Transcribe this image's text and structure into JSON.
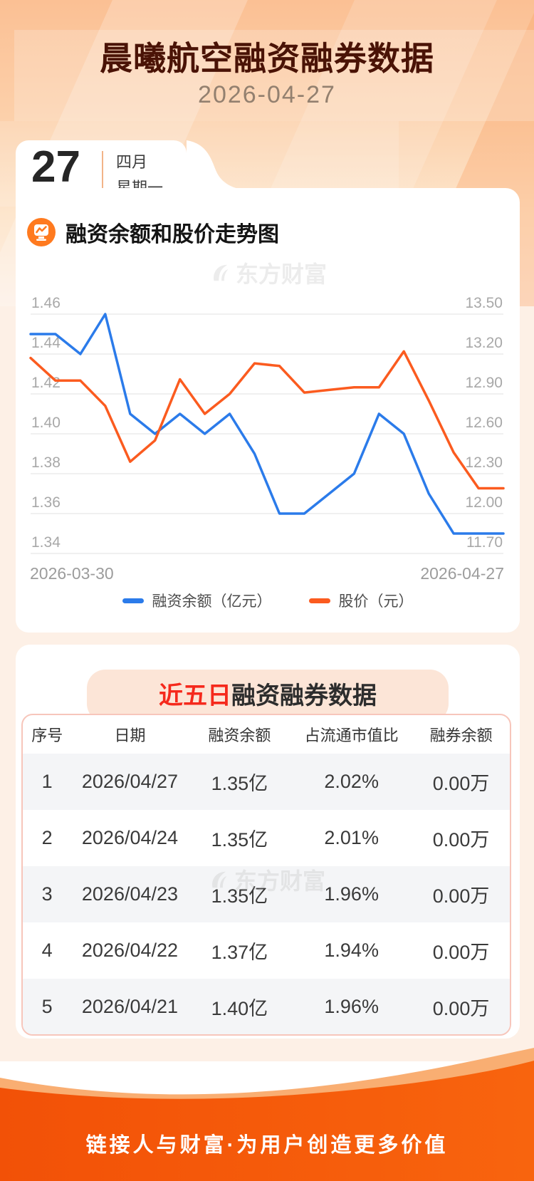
{
  "header": {
    "title": "晨曦航空融资融券数据",
    "date": "2026-04-27"
  },
  "date_card": {
    "day": "27",
    "month": "四月",
    "weekday": "星期一"
  },
  "chart_section": {
    "title": "融资余额和股价走势图"
  },
  "watermark": {
    "text": "东方财富"
  },
  "chart_data": {
    "type": "line",
    "title": "融资余额和股价走势图",
    "x_start_label": "2026-03-30",
    "x_end_label": "2026-04-27",
    "grid": true,
    "legend_position": "bottom",
    "left_axis": {
      "min": 1.34,
      "max": 1.46,
      "ticks": [
        "1.46",
        "1.44",
        "1.42",
        "1.40",
        "1.38",
        "1.36",
        "1.34"
      ]
    },
    "right_axis": {
      "min": 11.7,
      "max": 13.5,
      "ticks": [
        "13.50",
        "13.20",
        "12.90",
        "12.60",
        "12.30",
        "12.00",
        "11.70"
      ]
    },
    "series": [
      {
        "name": "融资余额（亿元）",
        "axis": "left",
        "color": "#2b7bea",
        "values": [
          1.45,
          1.45,
          1.44,
          1.46,
          1.41,
          1.4,
          1.41,
          1.4,
          1.41,
          1.39,
          1.36,
          1.36,
          1.37,
          1.38,
          1.41,
          1.4,
          1.37,
          1.35,
          1.35,
          1.35
        ]
      },
      {
        "name": "股价（元）",
        "axis": "right",
        "color": "#fb5b1f",
        "values": [
          13.17,
          13.0,
          13.0,
          12.81,
          12.39,
          12.55,
          13.01,
          12.75,
          12.9,
          13.13,
          13.11,
          12.91,
          12.93,
          12.95,
          12.95,
          13.22,
          12.85,
          12.46,
          12.19,
          12.19
        ]
      }
    ]
  },
  "table_section": {
    "title_highlight": "近五日",
    "title_rest": "融资融券数据",
    "columns": [
      "序号",
      "日期",
      "融资余额",
      "占流通市值比",
      "融券余额"
    ],
    "rows": [
      [
        "1",
        "2026/04/27",
        "1.35亿",
        "2.02%",
        "0.00万"
      ],
      [
        "2",
        "2026/04/24",
        "1.35亿",
        "2.01%",
        "0.00万"
      ],
      [
        "3",
        "2026/04/23",
        "1.35亿",
        "1.96%",
        "0.00万"
      ],
      [
        "4",
        "2026/04/22",
        "1.37亿",
        "1.94%",
        "0.00万"
      ],
      [
        "5",
        "2026/04/21",
        "1.40亿",
        "1.96%",
        "0.00万"
      ]
    ]
  },
  "footer": {
    "slogan": "链接人与财富·为用户创造更多价值"
  },
  "colors": {
    "blue_line": "#2b7bea",
    "orange_line": "#fb5b1f",
    "title_text": "#4a1306",
    "highlight_red": "#f5291c",
    "footer_orange": "#f3560a",
    "footer_light_orange": "#f9ae72",
    "table_alt_row": "#f4f5f7",
    "table_border": "#f7c6bb",
    "title_box_bg": "#fce5d7"
  }
}
